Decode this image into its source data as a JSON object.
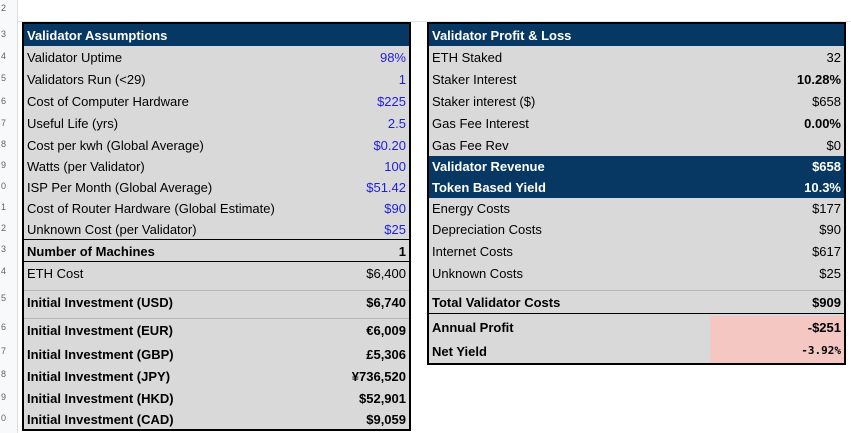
{
  "row_numbers": [
    "2",
    "3",
    "4",
    "5",
    "6",
    "7",
    "8",
    "9",
    "0",
    "1",
    "2",
    "3",
    "4",
    "5",
    "6",
    "7",
    "8",
    "9",
    "0"
  ],
  "assumptions": {
    "title": "Validator Assumptions",
    "rows": [
      {
        "label": "Validator Uptime",
        "value": "98%"
      },
      {
        "label": "Validators Run (<29)",
        "value": "1"
      },
      {
        "label": "Cost of Computer Hardware",
        "value": "$225"
      },
      {
        "label": "Useful Life (yrs)",
        "value": "2.5"
      },
      {
        "label": "Cost per kwh (Global Average)",
        "value": "$0.20"
      },
      {
        "label": "Watts (per Validator)",
        "value": "100"
      },
      {
        "label": "ISP Per Month (Global Average)",
        "value": "$51.42"
      },
      {
        "label": "Cost of Router Hardware (Global Estimate)",
        "value": "$90"
      },
      {
        "label": "Unknown Cost (per Validator)",
        "value": "$25"
      },
      {
        "label": "Number of Machines",
        "value": "1"
      },
      {
        "label": "ETH Cost",
        "value": "$6,400"
      },
      {
        "label": "Initial Investment (USD)",
        "value": "$6,740"
      },
      {
        "label": "Initial Investment (EUR)",
        "value": "€6,009"
      },
      {
        "label": "Initial Investment (GBP)",
        "value": "£5,306"
      },
      {
        "label": "Initial Investment (JPY)",
        "value": "¥736,520"
      },
      {
        "label": "Initial Investment (HKD)",
        "value": "$52,901"
      },
      {
        "label": "Initial Investment (CAD)",
        "value": "$9,059"
      }
    ]
  },
  "pnl": {
    "title": "Validator Profit & Loss",
    "rows": [
      {
        "label": "ETH Staked",
        "value": "32"
      },
      {
        "label": "Staker Interest",
        "value": "10.28%"
      },
      {
        "label": "Staker interest ($)",
        "value": "$658"
      },
      {
        "label": "Gas Fee Interest",
        "value": "0.00%"
      },
      {
        "label": "Gas Fee Rev",
        "value": "$0"
      },
      {
        "label": "Validator Revenue",
        "value": "$658"
      },
      {
        "label": "Token Based Yield",
        "value": "10.3%"
      },
      {
        "label": "Energy Costs",
        "value": "$177"
      },
      {
        "label": "Depreciation Costs",
        "value": "$90"
      },
      {
        "label": "Internet Costs",
        "value": "$617"
      },
      {
        "label": "Unknown Costs",
        "value": "$25"
      },
      {
        "label": "Total Validator Costs",
        "value": "$909"
      },
      {
        "label": "Annual Profit",
        "value": "-$251"
      },
      {
        "label": "Net Yield",
        "value": "-3.92%"
      }
    ]
  }
}
